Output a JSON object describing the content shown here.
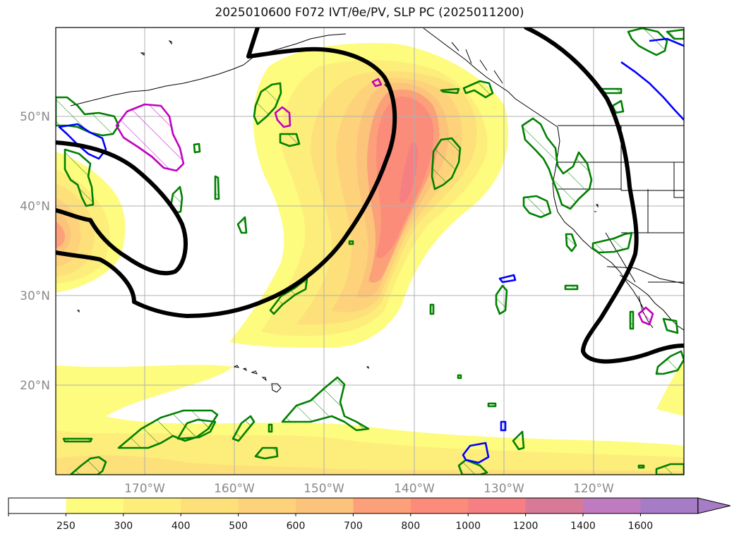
{
  "title": "2025010600 F072 IVT/θe/PV, SLP PC (2025011200)",
  "map": {
    "lat_labels": [
      "50°N",
      "40°N",
      "30°N",
      "20°N"
    ],
    "lon_labels": [
      "170°W",
      "160°W",
      "150°W",
      "140°W",
      "130°W",
      "120°W"
    ],
    "grid": true,
    "label_color": "#8a8a8a"
  },
  "colorbar": {
    "ticks": [
      "250",
      "300",
      "400",
      "500",
      "600",
      "700",
      "800",
      "1000",
      "1200",
      "1400",
      "1600"
    ],
    "colors": [
      "#ffffff",
      "#fefc7e",
      "#fdee7b",
      "#fde07a",
      "#fdd27b",
      "#fcc47b",
      "#fca07a",
      "#fb8c7a",
      "#f57f82",
      "#d67a98",
      "#c07abf",
      "#a67cc6"
    ],
    "extend": "max"
  },
  "colors": {
    "slp_contour": "#000000",
    "theta_e_contour": "#008000",
    "pv_contour_blue": "#0000ff",
    "pv_contour_magenta": "#c000c0",
    "coastline": "#000000"
  }
}
